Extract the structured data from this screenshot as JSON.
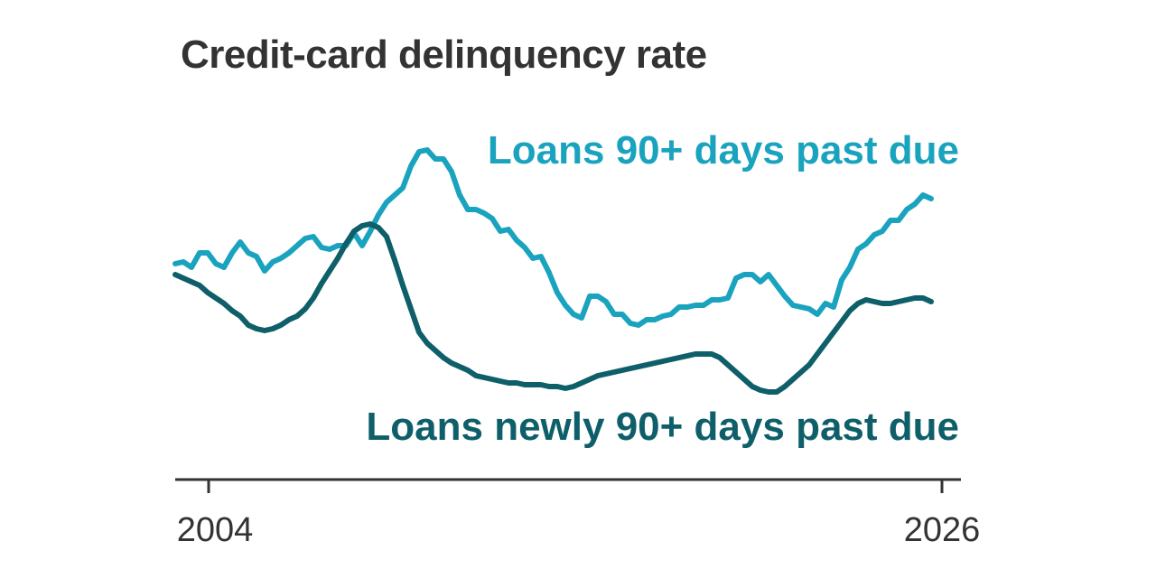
{
  "title": "Credit-card delinquency rate",
  "colors": {
    "series_90_plus": "#1aa3be",
    "series_newly_90_plus": "#0e5f69",
    "axis": "#333333"
  },
  "chart_data": {
    "type": "line",
    "title": "Credit-card delinquency rate",
    "xlabel": "",
    "ylabel": "",
    "x_tick_labels": [
      "2004",
      "2026"
    ],
    "xlim": [
      2003,
      2026.5
    ],
    "ylim": [
      0,
      100
    ],
    "y_axis_shown": false,
    "grid": false,
    "legend": "direct labels",
    "series": [
      {
        "name": "Loans 90+ days past due",
        "label_position": "top-right",
        "x": [
          2003.0,
          2003.25,
          2003.5,
          2003.75,
          2004.0,
          2004.25,
          2004.5,
          2004.75,
          2005.0,
          2005.25,
          2005.5,
          2005.75,
          2006.0,
          2006.25,
          2006.5,
          2006.75,
          2007.0,
          2007.25,
          2007.5,
          2007.75,
          2008.0,
          2008.25,
          2008.5,
          2008.75,
          2009.0,
          2009.25,
          2009.5,
          2009.75,
          2010.0,
          2010.25,
          2010.5,
          2010.75,
          2011.0,
          2011.25,
          2011.5,
          2011.75,
          2012.0,
          2012.25,
          2012.5,
          2012.75,
          2013.0,
          2013.25,
          2013.5,
          2013.75,
          2014.0,
          2014.25,
          2014.5,
          2014.75,
          2015.0,
          2015.25,
          2015.5,
          2015.75,
          2016.0,
          2016.25,
          2016.5,
          2016.75,
          2017.0,
          2017.25,
          2017.5,
          2017.75,
          2018.0,
          2018.25,
          2018.5,
          2018.75,
          2019.0,
          2019.25,
          2019.5,
          2019.75,
          2020.0,
          2020.25,
          2020.5,
          2020.75,
          2021.0,
          2021.25,
          2021.5,
          2021.75,
          2022.0,
          2022.25,
          2022.5,
          2022.75,
          2023.0,
          2023.25,
          2023.5,
          2023.75,
          2024.0,
          2024.25,
          2024.5,
          2024.75,
          2025.0,
          2025.25,
          2025.5,
          2025.75,
          2026.0,
          2026.25
        ],
        "values": [
          52,
          52.5,
          51,
          55,
          55,
          52,
          51,
          55,
          58,
          55,
          54,
          50,
          52.5,
          53.5,
          55,
          57,
          59,
          59.5,
          56.5,
          56,
          57,
          57,
          60.5,
          57,
          61,
          65.5,
          69,
          71,
          73,
          79,
          83,
          83.5,
          81,
          81,
          77.5,
          71,
          67,
          67,
          66,
          64.5,
          61,
          61.5,
          58.5,
          56.5,
          53.5,
          54,
          49.5,
          44,
          40.5,
          38,
          37,
          43,
          43,
          41.5,
          38,
          38,
          35.5,
          35,
          36.5,
          36.5,
          37.5,
          38,
          40,
          40,
          40.5,
          40.5,
          42,
          42,
          42.5,
          48,
          49,
          49,
          47,
          49,
          46,
          43,
          40.5,
          40,
          39.5,
          38,
          41,
          40,
          47.5,
          51,
          56,
          57.5,
          60,
          61,
          64,
          64,
          67,
          68.5,
          71,
          70
        ]
      },
      {
        "name": "Loans newly 90+ days past due",
        "label_position": "bottom-right",
        "x": [
          2003.0,
          2003.25,
          2003.5,
          2003.75,
          2004.0,
          2004.25,
          2004.5,
          2004.75,
          2005.0,
          2005.25,
          2005.5,
          2005.75,
          2006.0,
          2006.25,
          2006.5,
          2006.75,
          2007.0,
          2007.25,
          2007.5,
          2007.75,
          2008.0,
          2008.25,
          2008.5,
          2008.75,
          2009.0,
          2009.25,
          2009.5,
          2009.75,
          2010.0,
          2010.25,
          2010.5,
          2010.75,
          2011.0,
          2011.25,
          2011.5,
          2011.75,
          2012.0,
          2012.25,
          2012.5,
          2012.75,
          2013.0,
          2013.25,
          2013.5,
          2013.75,
          2014.0,
          2014.25,
          2014.5,
          2014.75,
          2015.0,
          2015.25,
          2015.5,
          2015.75,
          2016.0,
          2016.25,
          2016.5,
          2016.75,
          2017.0,
          2017.25,
          2017.5,
          2017.75,
          2018.0,
          2018.25,
          2018.5,
          2018.75,
          2019.0,
          2019.25,
          2019.5,
          2019.75,
          2020.0,
          2020.25,
          2020.5,
          2020.75,
          2021.0,
          2021.25,
          2021.5,
          2021.75,
          2022.0,
          2022.25,
          2022.5,
          2022.75,
          2023.0,
          2023.25,
          2023.5,
          2023.75,
          2024.0,
          2024.25,
          2024.5,
          2024.75,
          2025.0,
          2025.25,
          2025.5,
          2025.75,
          2026.0,
          2026.25
        ],
        "values": [
          49,
          48,
          47,
          46,
          44,
          42.5,
          41,
          39,
          37.5,
          35,
          34,
          33.5,
          34,
          35,
          36.5,
          37.5,
          39.5,
          42.5,
          46.5,
          50,
          53.5,
          57.5,
          61,
          62.5,
          63,
          62,
          59.5,
          53,
          46,
          39.5,
          33,
          30,
          28,
          26,
          24.5,
          23.5,
          22.5,
          21,
          20.5,
          20,
          19.5,
          19,
          19,
          18.5,
          18.5,
          18.5,
          18,
          18,
          17.5,
          18,
          19,
          20,
          21,
          21.5,
          22,
          22.5,
          23,
          23.5,
          24,
          24.5,
          25,
          25.5,
          26,
          26.5,
          27,
          27,
          27,
          26,
          24,
          22,
          20,
          18,
          17,
          16.5,
          16.5,
          18,
          20,
          22,
          24,
          27,
          30,
          33,
          36,
          39,
          41,
          42,
          41.5,
          41,
          41,
          41.5,
          42,
          42.5,
          42.5,
          41.5
        ]
      }
    ]
  }
}
